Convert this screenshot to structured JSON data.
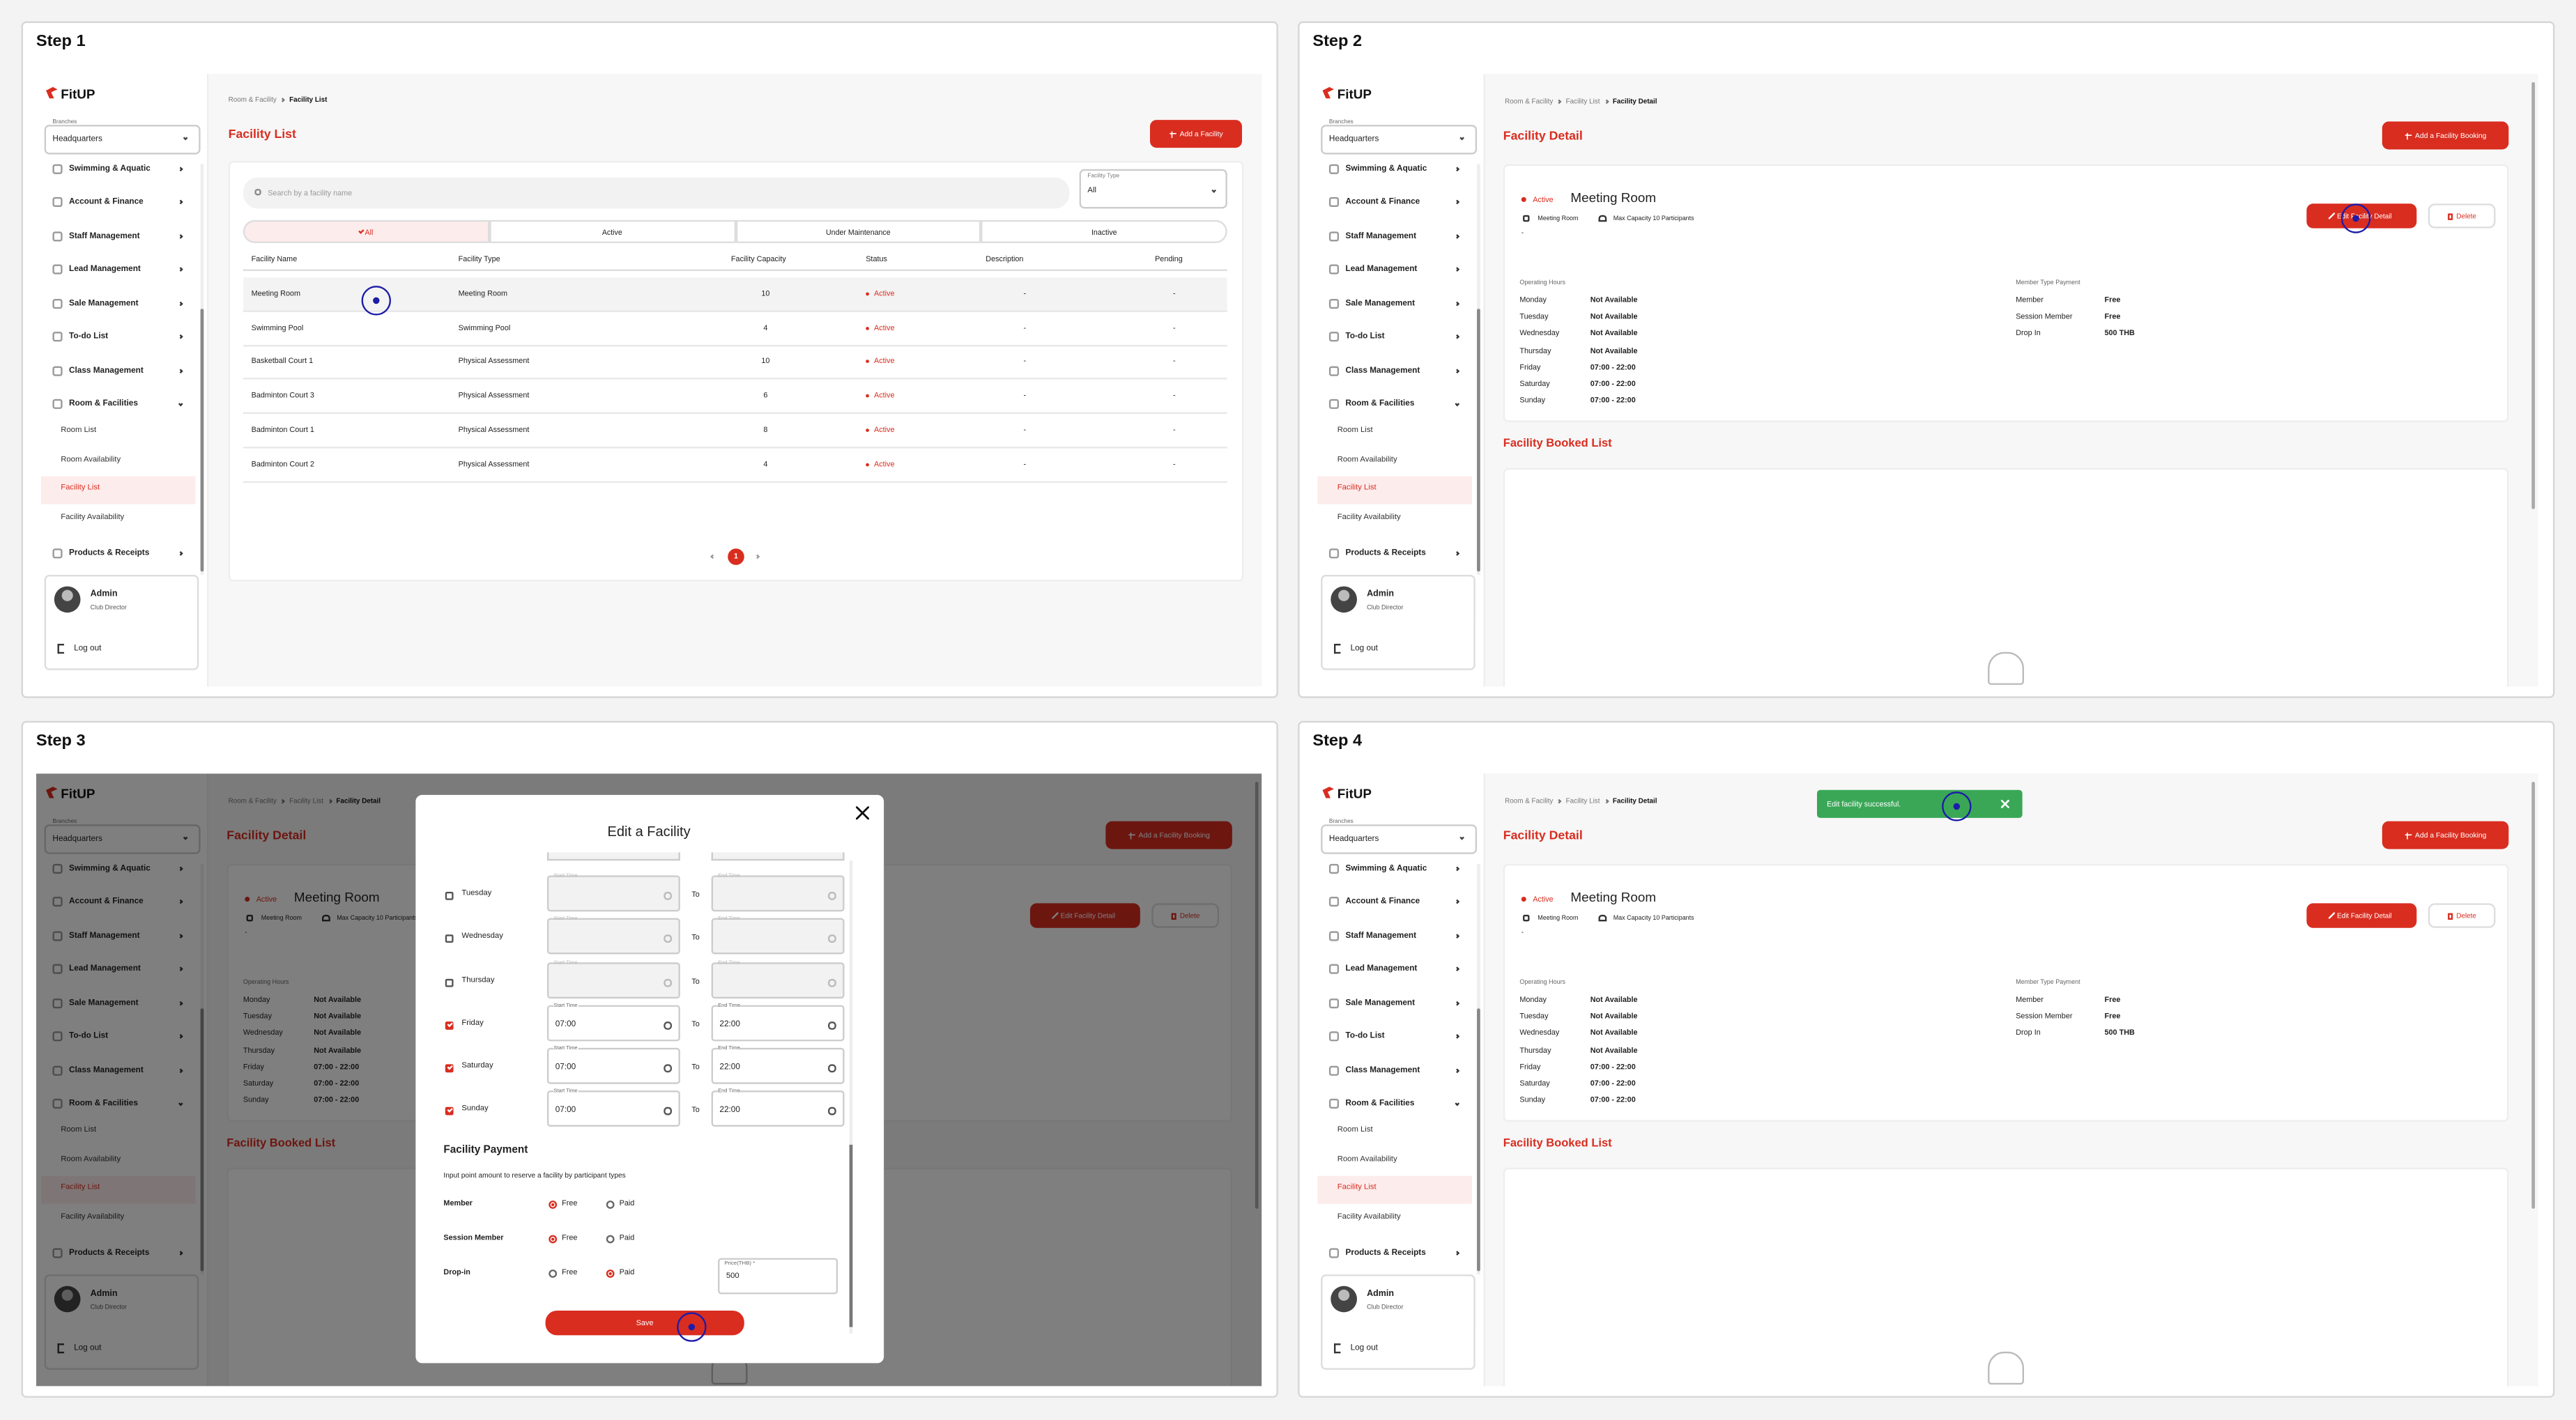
{
  "steps": [
    {
      "title": "Step 1"
    },
    {
      "title": "Step 2"
    },
    {
      "title": "Step 3"
    },
    {
      "title": "Step 4"
    }
  ],
  "sidebar": {
    "logo": "FitUP",
    "branch_label": "Branches",
    "branch": "Headquarters",
    "menu": [
      "Swimming & Aquatic",
      "Account & Finance",
      "Staff Management",
      "Lead Management",
      "Sale Management",
      "To-do List",
      "Class Management",
      "Room & Facilities"
    ],
    "submenu": [
      "Room List",
      "Room Availability",
      "Facility List",
      "Facility Availability"
    ],
    "menu_after": [
      "Products & Receipts"
    ],
    "user": {
      "name": "Admin",
      "role": "Club Director"
    },
    "logout": "Log out"
  },
  "list_page": {
    "breadcrumb": [
      "Room & Facility",
      "Facility List"
    ],
    "title": "Facility List",
    "add_button": "Add a Facility",
    "search_placeholder": "Search by a facility name",
    "type_label": "Facility Type",
    "type_value": "All",
    "tabs": [
      "All",
      "Active",
      "Under Maintenance",
      "Inactive"
    ],
    "table": {
      "columns": [
        "Facility Name",
        "Facility Type",
        "Facility Capacity",
        "Status",
        "Description",
        "Pending"
      ],
      "rows": [
        [
          "Meeting Room",
          "Meeting Room",
          10,
          "Active",
          "-",
          "-"
        ],
        [
          "Swimming Pool",
          "Swimming Pool",
          4,
          "Active",
          "-",
          "-"
        ],
        [
          "Basketball Court 1",
          "Physical Assessment",
          10,
          "Active",
          "-",
          "-"
        ],
        [
          "Badminton Court 3",
          "Physical Assessment",
          6,
          "Active",
          "-",
          "-"
        ],
        [
          "Badminton Court 1",
          "Physical Assessment",
          8,
          "Active",
          "-",
          "-"
        ],
        [
          "Badminton Court 2",
          "Physical Assessment",
          4,
          "Active",
          "-",
          "-"
        ]
      ]
    },
    "page": 1
  },
  "detail_page": {
    "breadcrumb": [
      "Room & Facility",
      "Facility List",
      "Facility Detail"
    ],
    "title": "Facility Detail",
    "add_button": "Add a Facility Booking",
    "status": "Active",
    "name": "Meeting Room",
    "type": "Meeting Room",
    "capacity": "Max Capacity 10 Participants",
    "description": "-",
    "edit_button": "Edit Facility Detail",
    "delete_button": "Delete",
    "hours_label": "Operating Hours",
    "hours": [
      [
        "Monday",
        "Not Available"
      ],
      [
        "Tuesday",
        "Not Available"
      ],
      [
        "Wednesday",
        "Not Available"
      ],
      [
        "Thursday",
        "Not Available"
      ],
      [
        "Friday",
        "07:00 - 22:00"
      ],
      [
        "Saturday",
        "07:00 - 22:00"
      ],
      [
        "Sunday",
        "07:00 - 22:00"
      ]
    ],
    "payment_label": "Member Type Payment",
    "payment": [
      [
        "Member",
        "Free"
      ],
      [
        "Session Member",
        "Free"
      ],
      [
        "Drop In",
        "500 THB"
      ]
    ],
    "booked_title": "Facility Booked List"
  },
  "modal": {
    "title": "Edit a Facility",
    "start_label": "Start Time",
    "end_label": "End Time",
    "to": "To",
    "days": [
      {
        "day": "Tuesday",
        "checked": false
      },
      {
        "day": "Wednesday",
        "checked": false
      },
      {
        "day": "Thursday",
        "checked": false
      },
      {
        "day": "Friday",
        "checked": true,
        "start": "07:00",
        "end": "22:00"
      },
      {
        "day": "Saturday",
        "checked": true,
        "start": "07:00",
        "end": "22:00"
      },
      {
        "day": "Sunday",
        "checked": true,
        "start": "07:00",
        "end": "22:00"
      }
    ],
    "payment_title": "Facility Payment",
    "payment_desc": "Input point amount to reserve a facility by participant types",
    "options": [
      "Free",
      "Paid"
    ],
    "rows": [
      {
        "type": "Member",
        "selected": "Free"
      },
      {
        "type": "Session Member",
        "selected": "Free"
      },
      {
        "type": "Drop-in",
        "selected": "Paid"
      }
    ],
    "price_label": "Price(THB) *",
    "price": "500",
    "save": "Save"
  },
  "toast": {
    "message": "Edit facility successful."
  }
}
